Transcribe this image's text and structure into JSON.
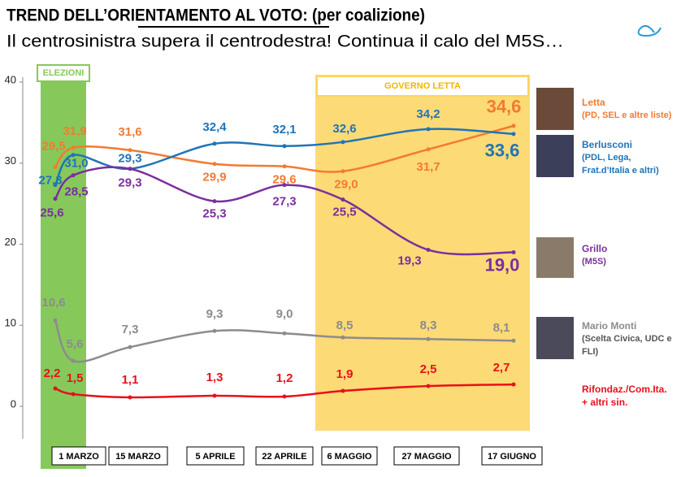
{
  "chart_data": {
    "type": "line",
    "title": "TREND DELL’ORIENTAMENTO AL VOTO: (per coalizione)",
    "subtitle": "Il centrosinistra supera il centrodestra! Continua il calo del M5S…",
    "annotations": [
      "ELEZIONI",
      "GOVERNO LETTA"
    ],
    "categories": [
      null,
      "1 MARZO",
      "15 MARZO",
      "5 APRILE",
      "22 APRILE",
      "6 MAGGIO",
      "27 MAGGIO",
      "17 GIUGNO"
    ],
    "ylim": [
      0,
      40
    ],
    "yticks": [
      0,
      10,
      20,
      30,
      40
    ],
    "series": [
      {
        "name": "Letta",
        "description": "(PD, SEL e altre liste)",
        "color": "#f47a30",
        "values": [
          29.5,
          31.9,
          31.6,
          29.9,
          29.6,
          29.0,
          31.7,
          34.6
        ],
        "value_labels": [
          "29,5",
          "31,9",
          "31,6",
          "29,9",
          "29,6",
          "29,0",
          "31,7",
          "34,6"
        ]
      },
      {
        "name": "Berlusconi",
        "description": "(PDL, Lega, Frat.d’Italia e altri)",
        "color": "#1f74b8",
        "values": [
          27.3,
          31.0,
          29.3,
          32.4,
          32.1,
          32.6,
          34.2,
          33.6
        ],
        "value_labels": [
          "27,3",
          "31,0",
          "29,3",
          "32,4",
          "32,1",
          "32,6",
          "34,2",
          "33,6"
        ]
      },
      {
        "name": "Grillo",
        "description": "(M5S)",
        "color": "#7a2f9e",
        "values": [
          25.6,
          28.5,
          29.3,
          25.3,
          27.3,
          25.5,
          19.3,
          19.0
        ],
        "value_labels": [
          "25,6",
          "28,5",
          "29,3",
          "25,3",
          "27,3",
          "25,5",
          "19,3",
          "19,0"
        ]
      },
      {
        "name": "Mario Monti",
        "description": "(Scelta Civica, UDC e FLI)",
        "color": "#8c8c8c",
        "values": [
          10.6,
          5.6,
          7.3,
          9.3,
          9.0,
          8.5,
          8.3,
          8.1
        ],
        "value_labels": [
          "10,6",
          "5,6",
          "7,3",
          "9,3",
          "9,0",
          "8,5",
          "8,3",
          "8,1"
        ]
      },
      {
        "name": "Rifondaz./Com.Ita. + altri sin.",
        "color": "#e8101a",
        "values": [
          2.2,
          1.5,
          1.1,
          1.3,
          1.2,
          1.9,
          2.5,
          2.7
        ],
        "value_labels": [
          "2,2",
          "1,5",
          "1,1",
          "1,3",
          "1,2",
          "1,9",
          "2,5",
          "2,7"
        ]
      }
    ]
  }
}
